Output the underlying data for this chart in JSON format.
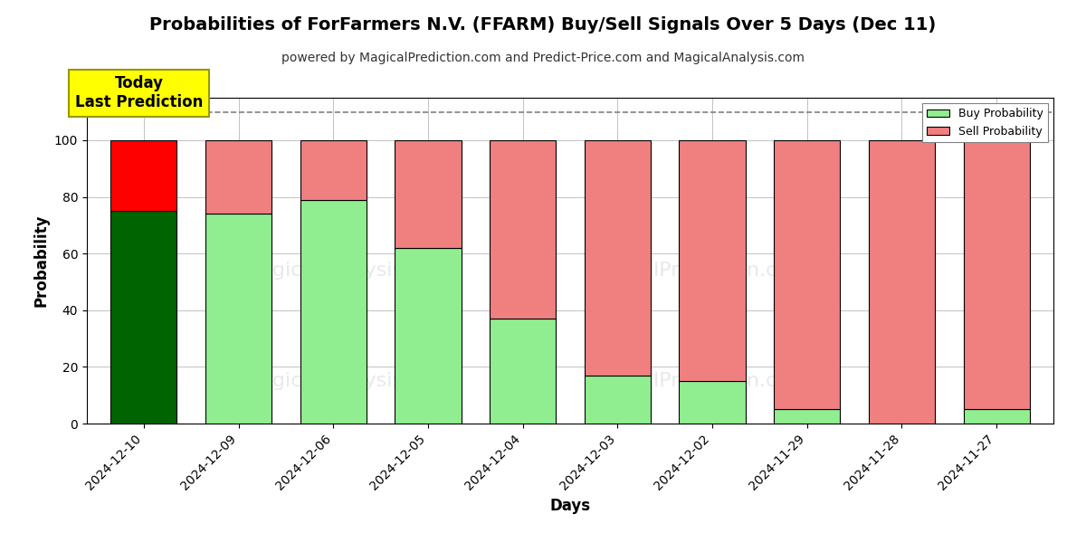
{
  "title": "Probabilities of ForFarmers N.V. (FFARM) Buy/Sell Signals Over 5 Days (Dec 11)",
  "subtitle": "powered by MagicalPrediction.com and Predict-Price.com and MagicalAnalysis.com",
  "xlabel": "Days",
  "ylabel": "Probability",
  "dates": [
    "2024-12-10",
    "2024-12-09",
    "2024-12-06",
    "2024-12-05",
    "2024-12-04",
    "2024-12-03",
    "2024-12-02",
    "2024-11-29",
    "2024-11-28",
    "2024-11-27"
  ],
  "buy_probs": [
    75,
    74,
    79,
    62,
    37,
    17,
    15,
    5,
    0,
    5
  ],
  "sell_probs": [
    25,
    26,
    21,
    38,
    63,
    83,
    85,
    95,
    100,
    95
  ],
  "buy_color_today": "#006400",
  "buy_color_normal": "#90EE90",
  "sell_color_today": "#FF0000",
  "sell_color_normal": "#F08080",
  "today_annotation": "Today\nLast Prediction",
  "today_annotation_bg": "#FFFF00",
  "dashed_line_y": 110,
  "ylim": [
    0,
    115
  ],
  "legend_buy_label": "Buy Probability",
  "legend_sell_label": "Sell Probability",
  "bar_edgecolor": "#000000",
  "bar_linewidth": 0.8,
  "grid_color": "#aaaaaa",
  "background_color": "#ffffff"
}
